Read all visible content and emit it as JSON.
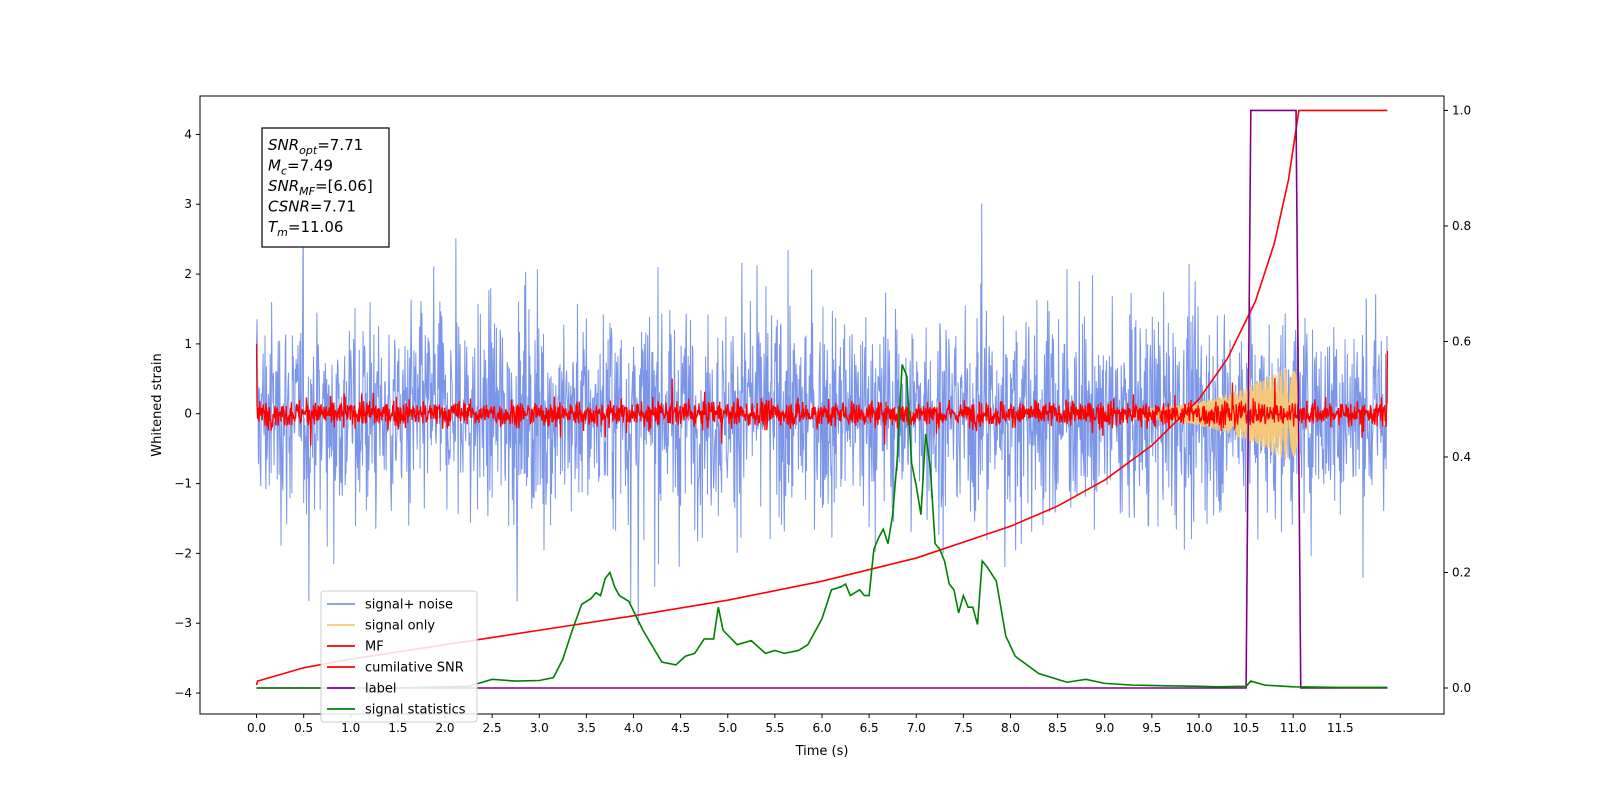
{
  "chart_data": {
    "type": "line",
    "xlabel": "Time (s)",
    "ylabel": "Whitened strain",
    "xlim": [
      -0.6,
      12.6
    ],
    "ylim_left": [
      -4.3,
      4.55
    ],
    "ylim_right": [
      -0.045,
      1.025
    ],
    "x_ticks": [
      0.0,
      0.5,
      1.0,
      1.5,
      2.0,
      2.5,
      3.0,
      3.5,
      4.0,
      4.5,
      5.0,
      5.5,
      6.0,
      6.5,
      7.0,
      7.5,
      8.0,
      8.5,
      9.0,
      9.5,
      10.0,
      10.5,
      11.0,
      11.5
    ],
    "x_tick_labels": [
      "0.0",
      "0.5",
      "1.0",
      "1.5",
      "2.0",
      "2.5",
      "3.0",
      "3.5",
      "4.0",
      "4.5",
      "5.0",
      "5.5",
      "6.0",
      "6.5",
      "7.0",
      "7.5",
      "8.0",
      "8.5",
      "9.0",
      "9.5",
      "10.0",
      "10.5",
      "11.0",
      "11.5"
    ],
    "y_left_ticks": [
      -4,
      -3,
      -2,
      -1,
      0,
      1,
      2,
      3,
      4
    ],
    "y_left_tick_labels": [
      "−4",
      "−3",
      "−2",
      "−1",
      "0",
      "1",
      "2",
      "3",
      "4"
    ],
    "y_right_ticks": [
      0.0,
      0.2,
      0.4,
      0.6,
      0.8,
      1.0
    ],
    "y_right_tick_labels": [
      "0.0",
      "0.2",
      "0.4",
      "0.6",
      "0.8",
      "1.0"
    ],
    "grid": false,
    "legend_position": "lower-left",
    "legend": [
      {
        "label": "signal+ noise",
        "color": "#7b96e8"
      },
      {
        "label": "signal only",
        "color": "#f6c97a"
      },
      {
        "label": "MF",
        "color": "#ff0000"
      },
      {
        "label": "cumilative SNR",
        "color": "#ff0000"
      },
      {
        "label": "label",
        "color": "#800080"
      },
      {
        "label": "signal statistics",
        "color": "#008000"
      }
    ],
    "annotation": {
      "lines": [
        {
          "sym": "SNR",
          "sub": "opt",
          "val": "=7.71"
        },
        {
          "sym": "M",
          "sub": "c",
          "val": "=7.49"
        },
        {
          "sym": "SNR",
          "sub": "MF",
          "val": "=[6.06]"
        },
        {
          "sym": "CSNR",
          "sub": "",
          "val": "=7.71"
        },
        {
          "sym": "T",
          "sub": "m",
          "val": "=11.06"
        }
      ]
    },
    "series": [
      {
        "name": "signal+ noise",
        "axis": "left",
        "color": "#7b96e8",
        "style": "noise",
        "x_range": [
          0.0,
          12.0
        ],
        "amplitude_typical": 2.0,
        "amplitude_max": 4.15
      },
      {
        "name": "signal only",
        "axis": "left",
        "color": "#f6c97a",
        "style": "chirp",
        "x_range": [
          9.3,
          11.06
        ],
        "peak_amplitude": 0.7
      },
      {
        "name": "MF",
        "axis": "left",
        "color": "#ff0000",
        "style": "noise",
        "x_range": [
          0.0,
          12.0
        ],
        "amplitude_typical": 0.2,
        "amplitude_max": 0.6,
        "start_value": 1.0,
        "end_value": 0.9
      },
      {
        "name": "cumilative SNR",
        "axis": "right",
        "color": "#ff0000",
        "style": "line",
        "x": [
          0.0,
          0.01,
          0.5,
          1.0,
          2.0,
          3.0,
          4.0,
          5.0,
          6.0,
          7.0,
          8.0,
          8.5,
          9.0,
          9.5,
          10.0,
          10.3,
          10.6,
          10.8,
          10.95,
          11.06,
          12.0
        ],
        "y": [
          0.005,
          0.012,
          0.035,
          0.05,
          0.075,
          0.1,
          0.125,
          0.152,
          0.185,
          0.225,
          0.28,
          0.315,
          0.36,
          0.42,
          0.5,
          0.57,
          0.67,
          0.77,
          0.88,
          1.0,
          1.0
        ]
      },
      {
        "name": "label",
        "axis": "right",
        "color": "#800080",
        "style": "line",
        "x": [
          0.0,
          10.5,
          10.55,
          11.03,
          11.08,
          12.0
        ],
        "y": [
          0.0,
          0.0,
          1.0,
          1.0,
          0.0,
          0.0
        ]
      },
      {
        "name": "signal statistics",
        "axis": "right",
        "color": "#008000",
        "style": "line",
        "x": [
          0.0,
          0.5,
          1.0,
          1.5,
          2.0,
          2.25,
          2.5,
          2.75,
          3.0,
          3.15,
          3.25,
          3.35,
          3.45,
          3.55,
          3.6,
          3.65,
          3.7,
          3.75,
          3.8,
          3.85,
          3.95,
          4.1,
          4.3,
          4.45,
          4.55,
          4.65,
          4.75,
          4.85,
          4.9,
          4.95,
          5.1,
          5.25,
          5.4,
          5.5,
          5.6,
          5.75,
          5.85,
          6.0,
          6.1,
          6.2,
          6.25,
          6.3,
          6.4,
          6.45,
          6.5,
          6.55,
          6.6,
          6.65,
          6.7,
          6.75,
          6.8,
          6.85,
          6.9,
          6.95,
          7.0,
          7.05,
          7.1,
          7.15,
          7.2,
          7.25,
          7.3,
          7.35,
          7.4,
          7.45,
          7.5,
          7.55,
          7.6,
          7.65,
          7.7,
          7.75,
          7.85,
          7.95,
          8.05,
          8.3,
          8.5,
          8.6,
          8.8,
          9.0,
          9.3,
          9.6,
          10.0,
          10.2,
          10.5,
          10.55,
          10.7,
          11.0,
          11.5,
          12.0
        ],
        "y": [
          0.0,
          0.0,
          0.0,
          0.0,
          0.002,
          0.003,
          0.015,
          0.012,
          0.013,
          0.018,
          0.05,
          0.1,
          0.145,
          0.155,
          0.165,
          0.16,
          0.19,
          0.2,
          0.175,
          0.16,
          0.15,
          0.1,
          0.045,
          0.04,
          0.055,
          0.06,
          0.085,
          0.085,
          0.14,
          0.1,
          0.075,
          0.082,
          0.06,
          0.065,
          0.06,
          0.065,
          0.075,
          0.12,
          0.17,
          0.175,
          0.18,
          0.16,
          0.17,
          0.16,
          0.16,
          0.24,
          0.26,
          0.275,
          0.25,
          0.3,
          0.4,
          0.56,
          0.54,
          0.39,
          0.35,
          0.3,
          0.44,
          0.38,
          0.25,
          0.24,
          0.22,
          0.18,
          0.17,
          0.13,
          0.16,
          0.14,
          0.14,
          0.11,
          0.22,
          0.21,
          0.185,
          0.09,
          0.055,
          0.025,
          0.015,
          0.01,
          0.015,
          0.008,
          0.005,
          0.004,
          0.003,
          0.002,
          0.003,
          0.012,
          0.005,
          0.002,
          0.001,
          0.001
        ]
      }
    ]
  }
}
